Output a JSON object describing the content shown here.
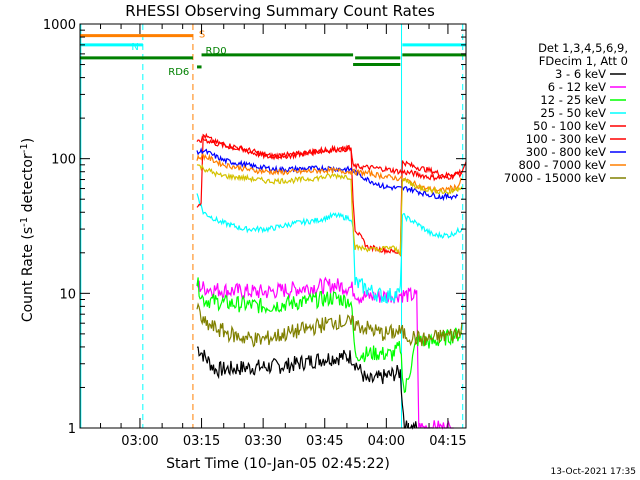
{
  "chart_data": {
    "type": "line",
    "title": "RHESSI Observing Summary Count Rates",
    "xlabel": "Start Time (10-Jan-05 02:45:22)",
    "ylabel_main": "Count Rate (s",
    "ylabel_sup1": "-1",
    "ylabel_mid": " detector",
    "ylabel_sup2": "-1",
    "ylabel_end": ")",
    "yscale": "log",
    "ylim": [
      1,
      1000
    ],
    "xlim_minutes": [
      0,
      94
    ],
    "x_tick_labels": [
      {
        "label": "03:00",
        "minute": 14.6
      },
      {
        "label": "03:15",
        "minute": 29.6
      },
      {
        "label": "03:30",
        "minute": 44.6
      },
      {
        "label": "03:45",
        "minute": 59.6
      },
      {
        "label": "04:00",
        "minute": 74.6
      },
      {
        "label": "04:15",
        "minute": 89.6
      }
    ],
    "y_tick_labels": [
      {
        "label": "1",
        "value": 1
      },
      {
        "label": "10",
        "value": 10
      },
      {
        "label": "100",
        "value": 100
      },
      {
        "label": "1000",
        "value": 1000
      }
    ],
    "legend_header": [
      "Det 1,3,4,5,6,9,",
      "FDecim 1, Att 0"
    ],
    "legend_placement": "right",
    "series": [
      {
        "name": "3 - 6 keV",
        "color": "#000000",
        "points": [
          [
            28.5,
            4.0
          ],
          [
            30,
            3.5
          ],
          [
            33,
            2.7
          ],
          [
            40,
            2.8
          ],
          [
            50,
            2.9
          ],
          [
            60,
            3.3
          ],
          [
            66,
            3.4
          ],
          [
            70,
            2.2
          ],
          [
            74,
            2.4
          ],
          [
            78,
            2.6
          ],
          [
            79,
            1.0
          ],
          [
            82,
            1.0
          ]
        ]
      },
      {
        "name": "6 - 12 keV",
        "color": "#ff00ff",
        "points": [
          [
            28.5,
            11.5
          ],
          [
            30,
            11.0
          ],
          [
            35,
            10.5
          ],
          [
            45,
            10.2
          ],
          [
            55,
            11.0
          ],
          [
            62,
            11.5
          ],
          [
            66,
            11.0
          ],
          [
            68,
            9.5
          ],
          [
            74,
            9.5
          ],
          [
            78,
            9.8
          ],
          [
            82,
            9.5
          ],
          [
            82.5,
            1.0
          ],
          [
            91,
            1.0
          ]
        ]
      },
      {
        "name": "12 - 25 keV",
        "color": "#00ff00",
        "points": [
          [
            28.5,
            12.0
          ],
          [
            30,
            9.0
          ],
          [
            35,
            8.5
          ],
          [
            45,
            8.0
          ],
          [
            55,
            8.7
          ],
          [
            62,
            9.3
          ],
          [
            66,
            8.7
          ],
          [
            67,
            3.5
          ],
          [
            72,
            3.6
          ],
          [
            76,
            3.5
          ],
          [
            78,
            4.0
          ],
          [
            79,
            1.8
          ],
          [
            82,
            4.5
          ],
          [
            86,
            4.3
          ],
          [
            90,
            4.8
          ],
          [
            93,
            5.0
          ]
        ]
      },
      {
        "name": "25 - 50 keV",
        "color": "#00ffff",
        "points": [
          [
            28.5,
            55
          ],
          [
            30,
            40
          ],
          [
            34,
            34
          ],
          [
            40,
            30
          ],
          [
            46,
            30
          ],
          [
            52,
            33
          ],
          [
            58,
            35
          ],
          [
            62,
            38
          ],
          [
            66,
            36
          ],
          [
            66.5,
            30
          ],
          [
            67,
            12
          ],
          [
            72,
            10
          ],
          [
            74,
            9.5
          ],
          [
            78,
            10
          ],
          [
            78.5,
            38
          ],
          [
            82,
            33
          ],
          [
            86,
            27
          ],
          [
            90,
            27
          ],
          [
            93,
            30
          ]
        ]
      },
      {
        "name": "50 - 100 keV",
        "color": "#ff0000",
        "points": [
          [
            28.5,
            45
          ],
          [
            29.5,
            48
          ],
          [
            30,
            150
          ],
          [
            33,
            132
          ],
          [
            40,
            118
          ],
          [
            46,
            105
          ],
          [
            52,
            107
          ],
          [
            58,
            115
          ],
          [
            62,
            118
          ],
          [
            66,
            120
          ],
          [
            66.5,
            50
          ],
          [
            67,
            30
          ],
          [
            70,
            22
          ],
          [
            74,
            21
          ],
          [
            78,
            20
          ],
          [
            78.5,
            95
          ],
          [
            81,
            88
          ],
          [
            85,
            82
          ],
          [
            89,
            75
          ],
          [
            93,
            80
          ],
          [
            94,
            95
          ]
        ]
      },
      {
        "name": "100 - 300 keV",
        "color": "#ff0000",
        "points": [
          [
            28.5,
            130
          ],
          [
            30,
            140
          ],
          [
            33,
            130
          ],
          [
            40,
            115
          ],
          [
            46,
            103
          ],
          [
            52,
            106
          ],
          [
            58,
            113
          ],
          [
            62,
            117
          ],
          [
            66,
            118
          ],
          [
            66.5,
            88
          ],
          [
            74,
            84
          ],
          [
            78,
            80
          ],
          [
            81,
            78
          ],
          [
            85,
            73
          ],
          [
            89,
            72
          ],
          [
            93,
            78
          ]
        ]
      },
      {
        "name": "300 - 800 keV",
        "color": "#0000ff",
        "points": [
          [
            28.5,
            110
          ],
          [
            30,
            115
          ],
          [
            35,
            97
          ],
          [
            42,
            88
          ],
          [
            48,
            83
          ],
          [
            54,
            84
          ],
          [
            60,
            85
          ],
          [
            66,
            83
          ],
          [
            70,
            70
          ],
          [
            74,
            62
          ],
          [
            78,
            60
          ],
          [
            80,
            60
          ],
          [
            84,
            55
          ],
          [
            88,
            52
          ],
          [
            92,
            53
          ]
        ]
      },
      {
        "name": "800 - 7000 keV",
        "color": "#ff7f00",
        "points": [
          [
            28.5,
            100
          ],
          [
            30,
            105
          ],
          [
            35,
            90
          ],
          [
            42,
            82
          ],
          [
            48,
            79
          ],
          [
            54,
            80
          ],
          [
            60,
            82
          ],
          [
            66,
            80
          ],
          [
            70,
            78
          ],
          [
            74,
            74
          ],
          [
            78,
            71
          ],
          [
            80,
            68
          ],
          [
            84,
            60
          ],
          [
            88,
            58
          ],
          [
            92,
            62
          ],
          [
            93,
            70
          ]
        ]
      },
      {
        "name": "7000 - 15000 keV",
        "color": "#808000",
        "points": [
          [
            28.5,
            8.0
          ],
          [
            30,
            6.0
          ],
          [
            33,
            5.5
          ],
          [
            38,
            4.8
          ],
          [
            44,
            4.5
          ],
          [
            50,
            5.0
          ],
          [
            56,
            5.5
          ],
          [
            62,
            6.2
          ],
          [
            66,
            6.0
          ],
          [
            70,
            5.5
          ],
          [
            74,
            5.0
          ],
          [
            78,
            5.2
          ],
          [
            80,
            4.8
          ],
          [
            84,
            4.5
          ],
          [
            88,
            4.8
          ],
          [
            92,
            5.0
          ],
          [
            93,
            6.0
          ]
        ]
      },
      {
        "name": "",
        "color": "#d4c200",
        "points": [
          [
            28.5,
            90
          ],
          [
            30,
            85
          ],
          [
            34,
            75
          ],
          [
            40,
            72
          ],
          [
            46,
            68
          ],
          [
            52,
            69
          ],
          [
            58,
            72
          ],
          [
            62,
            75
          ],
          [
            66,
            73
          ],
          [
            66.5,
            30
          ],
          [
            67,
            22
          ],
          [
            72,
            21
          ],
          [
            76,
            22
          ],
          [
            78,
            20
          ],
          [
            78.5,
            70
          ],
          [
            82,
            62
          ],
          [
            86,
            58
          ],
          [
            90,
            56
          ],
          [
            93,
            62
          ]
        ]
      }
    ],
    "state_bars": [
      {
        "label": "S",
        "color": "#ff7f00",
        "segments": [
          [
            0,
            27.5
          ]
        ],
        "y_value": 820
      },
      {
        "label": "N",
        "color": "#00ffff",
        "segments": [
          [
            0,
            15.3
          ],
          [
            78.5,
            94
          ]
        ],
        "y_value": 700
      },
      {
        "label": "RD0",
        "color": "#008000",
        "segments": [
          [
            29.6,
            66.5
          ],
          [
            78.5,
            94
          ]
        ],
        "y_value": 590
      },
      {
        "label": "",
        "color": "#008000",
        "segments": [
          [
            0,
            27.5
          ],
          [
            67,
            78.0
          ]
        ],
        "y_value": 560
      },
      {
        "label": "",
        "color": "#008000",
        "segments": [
          [
            66.5,
            78.0
          ]
        ],
        "y_value": 500
      },
      {
        "label": "RD6",
        "color": "#008000",
        "segments": [
          [
            28.5,
            29.6
          ]
        ],
        "y_value": 480
      }
    ],
    "vertical_markers": [
      {
        "minute": 0.2,
        "color": "#00ffff",
        "style": "solid"
      },
      {
        "minute": 15.3,
        "color": "#00ffff",
        "style": "dashed"
      },
      {
        "minute": 27.5,
        "color": "#ff7f00",
        "style": "dashed"
      },
      {
        "minute": 78.3,
        "color": "#00ffff",
        "style": "solid"
      },
      {
        "minute": 93.2,
        "color": "#00ffff",
        "style": "dashed"
      }
    ]
  },
  "footer": {
    "timestamp": "13-Oct-2021 17:35"
  }
}
